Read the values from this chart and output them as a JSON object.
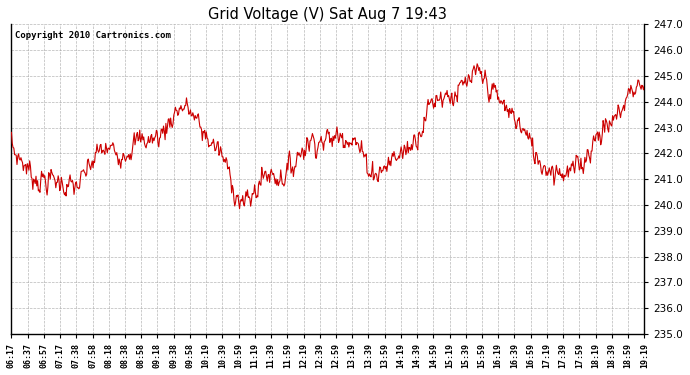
{
  "title": "Grid Voltage (V) Sat Aug 7 19:43",
  "copyright": "Copyright 2010 Cartronics.com",
  "ylim": [
    235.0,
    247.0
  ],
  "yticks": [
    235.0,
    236.0,
    237.0,
    238.0,
    239.0,
    240.0,
    241.0,
    242.0,
    243.0,
    244.0,
    245.0,
    246.0,
    247.0
  ],
  "line_color": "#cc0000",
  "bg_color": "#ffffff",
  "grid_color": "#999999",
  "xtick_labels": [
    "06:17",
    "06:37",
    "06:57",
    "07:17",
    "07:38",
    "07:58",
    "08:18",
    "08:38",
    "08:58",
    "09:18",
    "09:38",
    "09:58",
    "10:19",
    "10:39",
    "10:59",
    "11:19",
    "11:39",
    "11:59",
    "12:19",
    "12:39",
    "12:59",
    "13:19",
    "13:39",
    "13:59",
    "14:19",
    "14:39",
    "14:59",
    "15:19",
    "15:39",
    "15:59",
    "16:19",
    "16:39",
    "16:59",
    "17:19",
    "17:39",
    "17:59",
    "18:19",
    "18:39",
    "18:59",
    "19:19"
  ],
  "figsize": [
    6.9,
    3.75
  ],
  "dpi": 100
}
